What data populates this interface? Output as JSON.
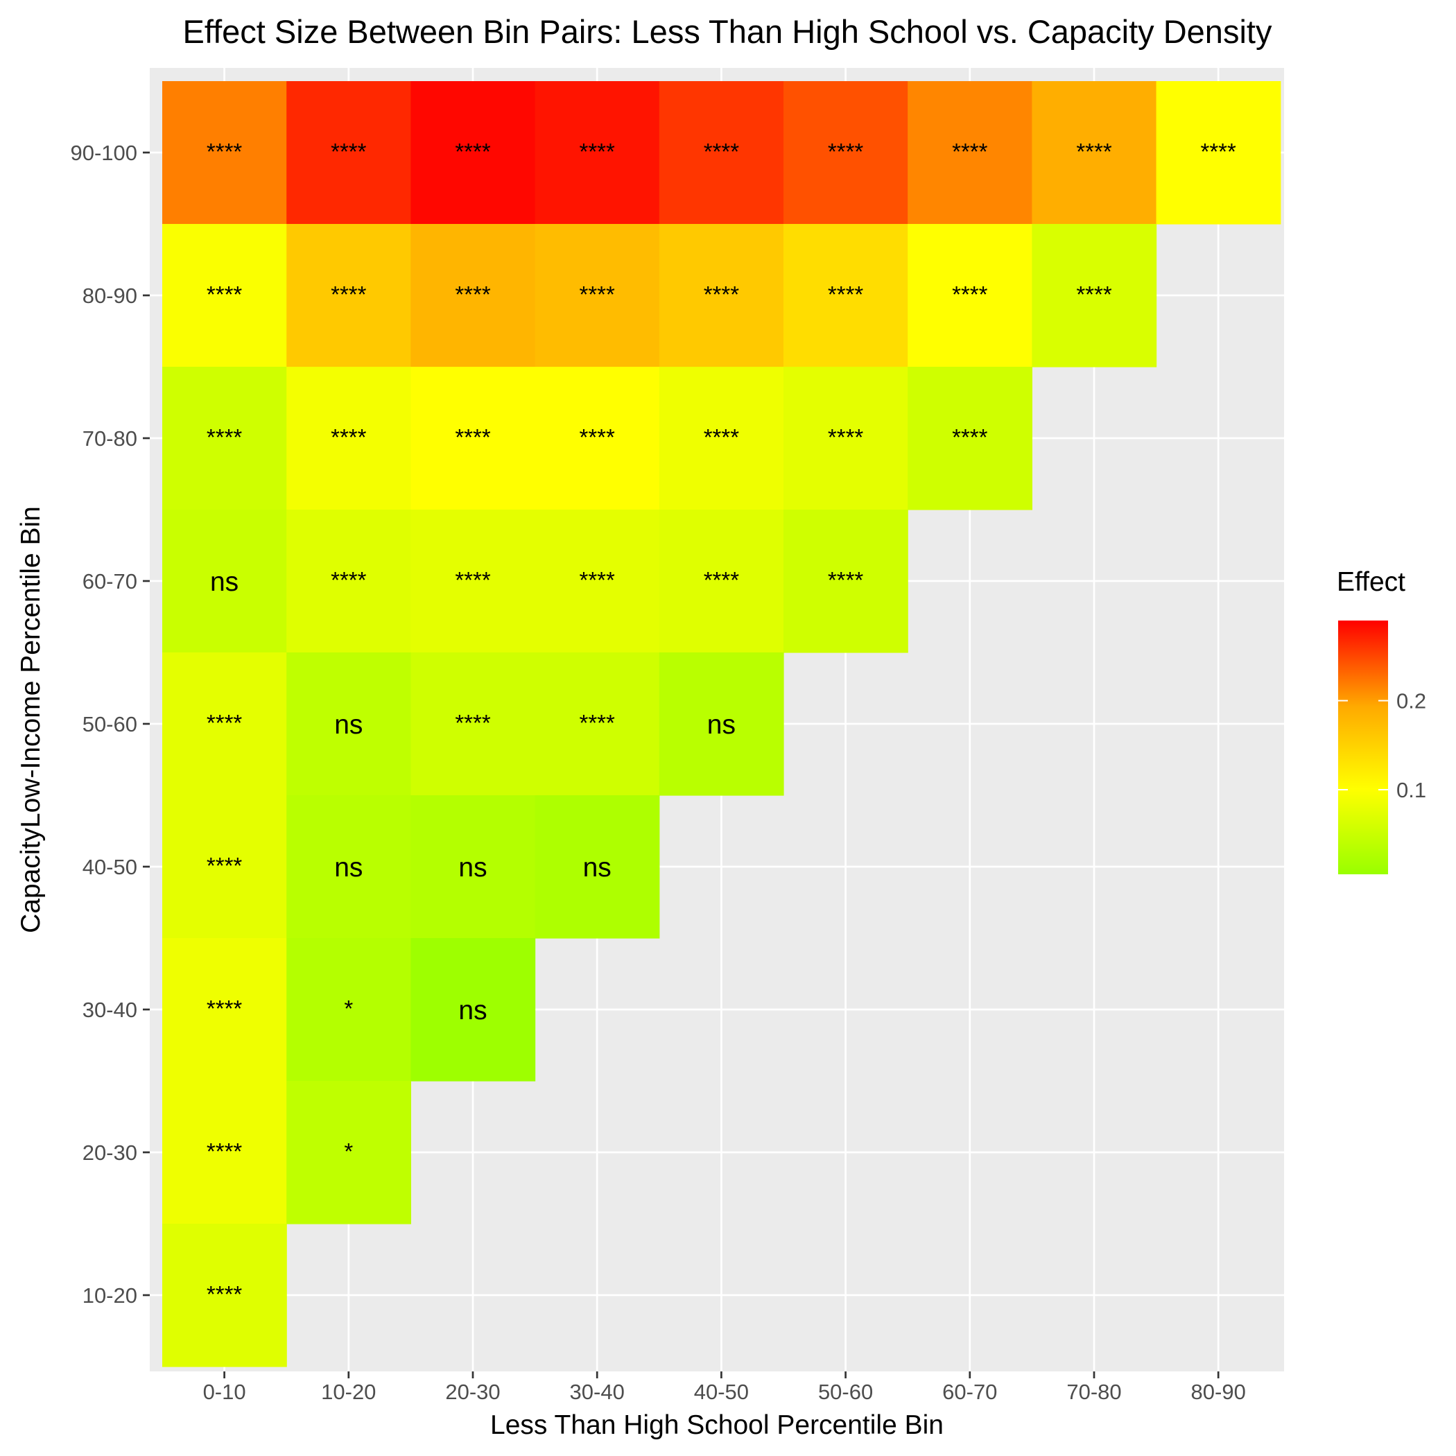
{
  "chart_data": {
    "type": "heatmap",
    "title": "Effect Size Between Bin Pairs: Less Than High School vs. Capacity Density",
    "xlabel": "Less Than High School Percentile Bin",
    "ylabel": "CapacityLow-Income Percentile Bin",
    "x_categories": [
      "0-10",
      "10-20",
      "20-30",
      "30-40",
      "40-50",
      "50-60",
      "60-70",
      "70-80",
      "80-90"
    ],
    "y_categories": [
      "10-20",
      "20-30",
      "30-40",
      "40-50",
      "50-60",
      "60-70",
      "70-80",
      "80-90",
      "90-100"
    ],
    "legend": {
      "title": "Effect",
      "position": "right",
      "min": 0.005,
      "max": 0.29,
      "ticks": [
        0.1,
        0.2
      ],
      "tick_labels": [
        "0.1",
        "0.2"
      ],
      "colors": [
        "#99FF00",
        "#FFFF00",
        "#FF0000"
      ]
    },
    "grid": true,
    "cells": [
      {
        "x": "0-10",
        "y": "90-100",
        "value": 0.195,
        "label": "****"
      },
      {
        "x": "10-20",
        "y": "90-100",
        "value": 0.26,
        "label": "****"
      },
      {
        "x": "20-30",
        "y": "90-100",
        "value": 0.285,
        "label": "****"
      },
      {
        "x": "30-40",
        "y": "90-100",
        "value": 0.275,
        "label": "****"
      },
      {
        "x": "40-50",
        "y": "90-100",
        "value": 0.25,
        "label": "****"
      },
      {
        "x": "50-60",
        "y": "90-100",
        "value": 0.23,
        "label": "****"
      },
      {
        "x": "60-70",
        "y": "90-100",
        "value": 0.19,
        "label": "****"
      },
      {
        "x": "70-80",
        "y": "90-100",
        "value": 0.16,
        "label": "****"
      },
      {
        "x": "80-90",
        "y": "90-100",
        "value": 0.1,
        "label": "****"
      },
      {
        "x": "0-10",
        "y": "80-90",
        "value": 0.095,
        "label": "****"
      },
      {
        "x": "10-20",
        "y": "80-90",
        "value": 0.14,
        "label": "****"
      },
      {
        "x": "20-30",
        "y": "80-90",
        "value": 0.155,
        "label": "****"
      },
      {
        "x": "30-40",
        "y": "80-90",
        "value": 0.15,
        "label": "****"
      },
      {
        "x": "40-50",
        "y": "80-90",
        "value": 0.14,
        "label": "****"
      },
      {
        "x": "50-60",
        "y": "80-90",
        "value": 0.125,
        "label": "****"
      },
      {
        "x": "60-70",
        "y": "80-90",
        "value": 0.1,
        "label": "****"
      },
      {
        "x": "70-80",
        "y": "80-90",
        "value": 0.065,
        "label": "****"
      },
      {
        "x": "0-10",
        "y": "70-80",
        "value": 0.055,
        "label": "****"
      },
      {
        "x": "10-20",
        "y": "70-80",
        "value": 0.09,
        "label": "****"
      },
      {
        "x": "20-30",
        "y": "70-80",
        "value": 0.1,
        "label": "****"
      },
      {
        "x": "30-40",
        "y": "70-80",
        "value": 0.1,
        "label": "****"
      },
      {
        "x": "40-50",
        "y": "70-80",
        "value": 0.085,
        "label": "****"
      },
      {
        "x": "50-60",
        "y": "70-80",
        "value": 0.075,
        "label": "****"
      },
      {
        "x": "60-70",
        "y": "70-80",
        "value": 0.055,
        "label": "****"
      },
      {
        "x": "0-10",
        "y": "60-70",
        "value": 0.05,
        "label": "ns"
      },
      {
        "x": "10-20",
        "y": "60-70",
        "value": 0.07,
        "label": "****"
      },
      {
        "x": "20-30",
        "y": "60-70",
        "value": 0.075,
        "label": "****"
      },
      {
        "x": "30-40",
        "y": "60-70",
        "value": 0.075,
        "label": "****"
      },
      {
        "x": "40-50",
        "y": "60-70",
        "value": 0.07,
        "label": "****"
      },
      {
        "x": "50-60",
        "y": "60-70",
        "value": 0.055,
        "label": "****"
      },
      {
        "x": "0-10",
        "y": "50-60",
        "value": 0.075,
        "label": "****"
      },
      {
        "x": "10-20",
        "y": "50-60",
        "value": 0.04,
        "label": "ns"
      },
      {
        "x": "20-30",
        "y": "50-60",
        "value": 0.055,
        "label": "****"
      },
      {
        "x": "30-40",
        "y": "50-60",
        "value": 0.055,
        "label": "****"
      },
      {
        "x": "40-50",
        "y": "50-60",
        "value": 0.035,
        "label": "ns"
      },
      {
        "x": "0-10",
        "y": "40-50",
        "value": 0.075,
        "label": "****"
      },
      {
        "x": "10-20",
        "y": "40-50",
        "value": 0.035,
        "label": "ns"
      },
      {
        "x": "20-30",
        "y": "40-50",
        "value": 0.03,
        "label": "ns"
      },
      {
        "x": "30-40",
        "y": "40-50",
        "value": 0.025,
        "label": "ns"
      },
      {
        "x": "0-10",
        "y": "30-40",
        "value": 0.085,
        "label": "****"
      },
      {
        "x": "10-20",
        "y": "30-40",
        "value": 0.03,
        "label": "*"
      },
      {
        "x": "20-30",
        "y": "30-40",
        "value": 0.01,
        "label": "ns"
      },
      {
        "x": "0-10",
        "y": "20-30",
        "value": 0.085,
        "label": "****"
      },
      {
        "x": "10-20",
        "y": "20-30",
        "value": 0.04,
        "label": "*"
      },
      {
        "x": "0-10",
        "y": "10-20",
        "value": 0.07,
        "label": "****"
      }
    ]
  }
}
